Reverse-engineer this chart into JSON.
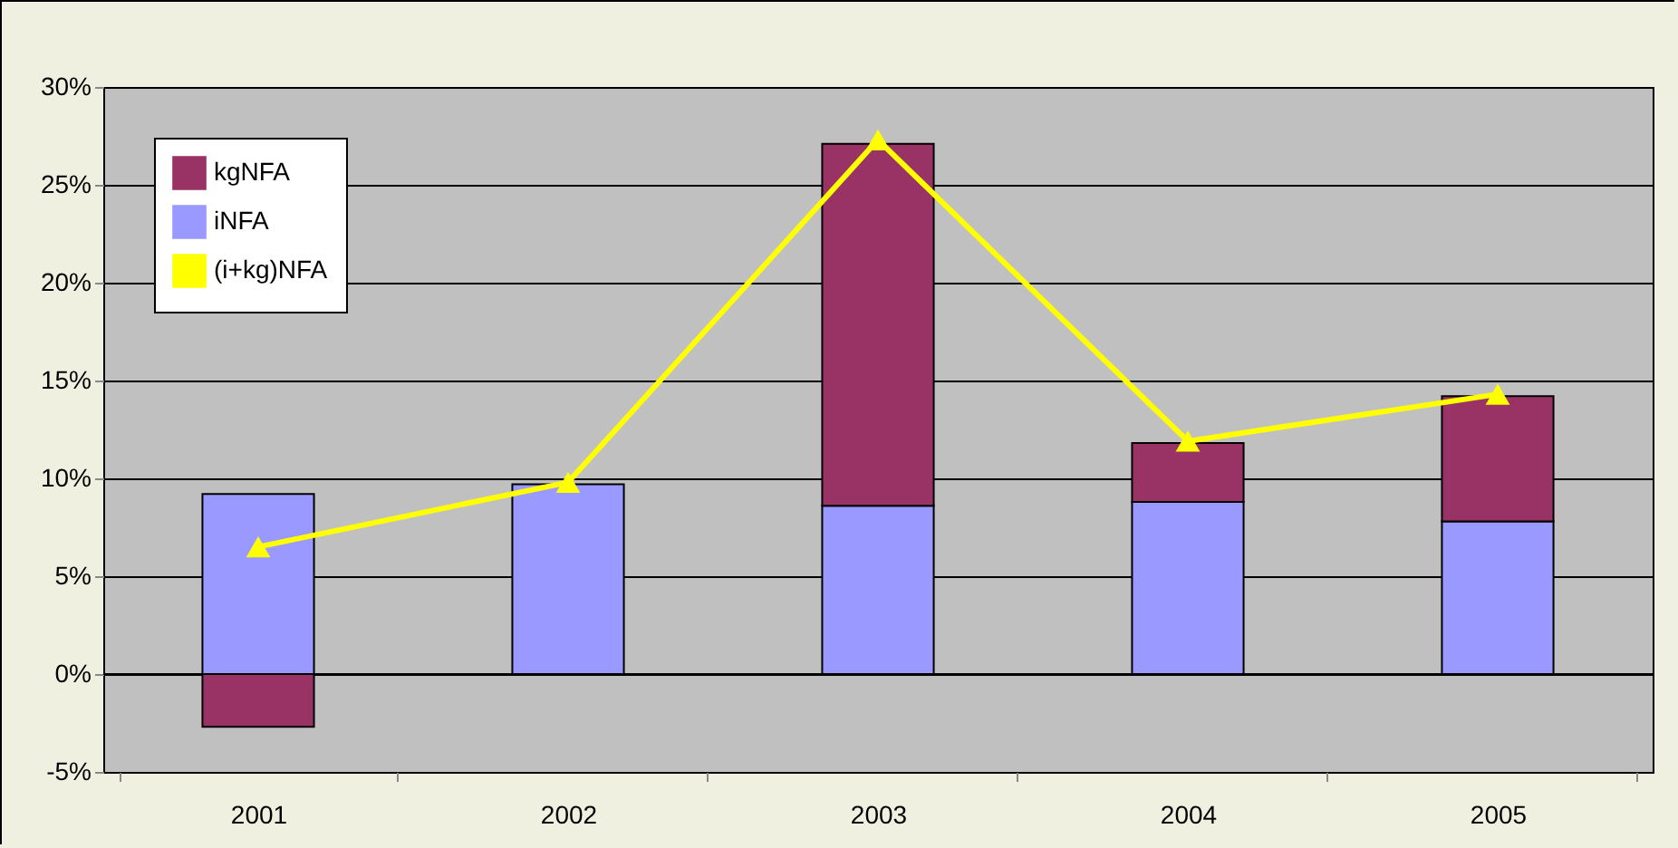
{
  "chart_data": {
    "type": "bar",
    "stacked": true,
    "categories": [
      "2001",
      "2002",
      "2003",
      "2004",
      "2005"
    ],
    "series": [
      {
        "name": "iNFA",
        "color": "#9999ff",
        "values": [
          9.2,
          9.7,
          8.6,
          8.8,
          7.8
        ]
      },
      {
        "name": "kgNFA",
        "color": "#993366",
        "values": [
          -2.7,
          null,
          18.5,
          3.0,
          6.4
        ]
      },
      {
        "name": "(i+kg)NFA",
        "type": "line",
        "color": "#ffff00",
        "marker": "triangle",
        "values": [
          6.5,
          9.8,
          27.3,
          11.9,
          14.3
        ]
      }
    ],
    "ylim": [
      -5,
      30
    ],
    "yticks": [
      {
        "value": -5,
        "label": "-5%"
      },
      {
        "value": 0,
        "label": "0%"
      },
      {
        "value": 5,
        "label": "5%"
      },
      {
        "value": 10,
        "label": "10%"
      },
      {
        "value": 15,
        "label": "15%"
      },
      {
        "value": 20,
        "label": "20%"
      },
      {
        "value": 25,
        "label": "25%"
      },
      {
        "value": 30,
        "label": "30%"
      }
    ],
    "grid": "y",
    "legend": "top left"
  }
}
